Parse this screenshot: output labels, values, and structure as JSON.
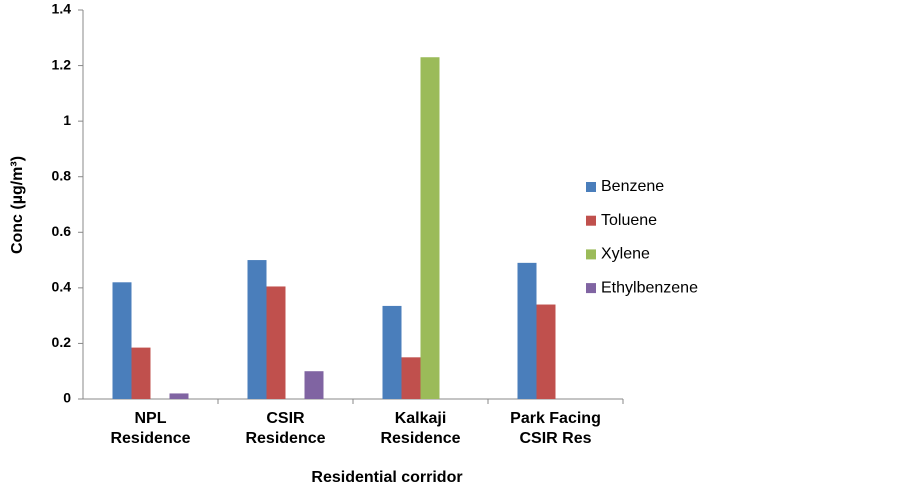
{
  "chart_data": {
    "type": "bar",
    "x_label": "Residential corridor",
    "y_label": "Conc (µg/m³)",
    "categories": [
      "NPL Residence",
      "CSIR Residence",
      "Kalkaji Residence",
      "Park Facing CSIR Res"
    ],
    "series": [
      {
        "name": "Benzene",
        "color": "#4a7ebb",
        "values": [
          0.42,
          0.5,
          0.335,
          0.49
        ]
      },
      {
        "name": "Toluene",
        "color": "#c0504d",
        "values": [
          0.185,
          0.405,
          0.15,
          0.34
        ]
      },
      {
        "name": "Xylene",
        "color": "#9bbb59",
        "values": [
          null,
          null,
          1.23,
          null
        ]
      },
      {
        "name": "Ethylbenzene",
        "color": "#8064a2",
        "values": [
          0.02,
          0.1,
          null,
          null
        ]
      }
    ],
    "ylim": [
      0,
      1.4
    ],
    "yticks": [
      0,
      0.2,
      0.4,
      0.6,
      0.8,
      1,
      1.2,
      1.4
    ],
    "grid": false,
    "legend": "right"
  }
}
